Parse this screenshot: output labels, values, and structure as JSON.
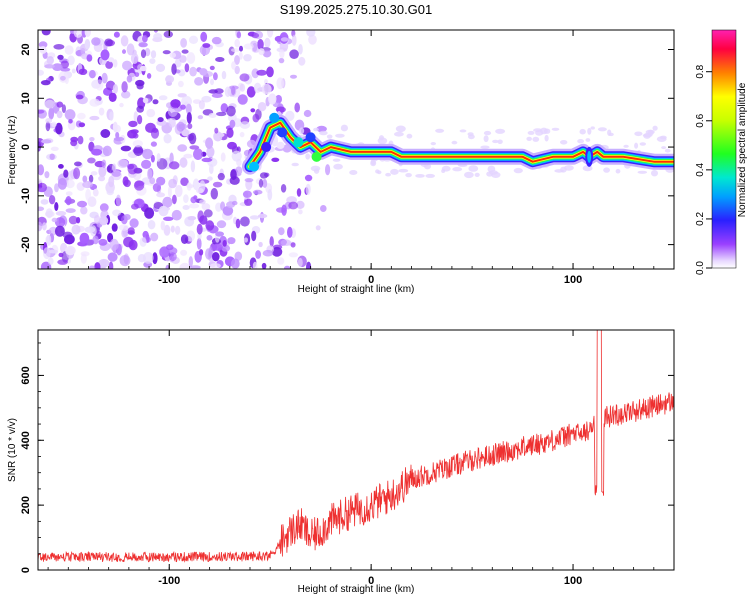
{
  "title": "S199.2025.275.10.30.G01",
  "chart_data": [
    {
      "type": "heatmap",
      "name": "spectrogram",
      "xlabel": "Height of straight line (km)",
      "ylabel": "Frequency (Hz)",
      "xlim": [
        -165,
        150
      ],
      "ylim": [
        -25,
        24
      ],
      "x_ticks": [
        -100,
        0,
        100
      ],
      "y_ticks": [
        20,
        10,
        0,
        -10,
        -20
      ],
      "noise_region_x": [
        -165,
        -40
      ],
      "signal_track": [
        [
          -60,
          -4
        ],
        [
          -55,
          -1
        ],
        [
          -50,
          4
        ],
        [
          -45,
          5
        ],
        [
          -40,
          2
        ],
        [
          -35,
          0
        ],
        [
          -30,
          1
        ],
        [
          -25,
          -1
        ],
        [
          -20,
          0
        ],
        [
          -10,
          -1
        ],
        [
          0,
          -1
        ],
        [
          5,
          -1
        ],
        [
          10,
          -1
        ],
        [
          15,
          -2
        ],
        [
          20,
          -2
        ],
        [
          40,
          -2
        ],
        [
          60,
          -2
        ],
        [
          75,
          -2
        ],
        [
          80,
          -3
        ],
        [
          90,
          -2
        ],
        [
          95,
          -2
        ],
        [
          100,
          -2
        ],
        [
          105,
          -1
        ],
        [
          108,
          -2
        ],
        [
          112,
          -1
        ],
        [
          115,
          -2
        ],
        [
          125,
          -2
        ],
        [
          140,
          -3
        ],
        [
          150,
          -3
        ]
      ],
      "colorbar": {
        "label": "Normalized spectral amplitude",
        "ticks": [
          "0.0",
          "0.2",
          "0.4",
          "0.6",
          "0.8"
        ],
        "range": [
          0,
          0.97
        ]
      }
    },
    {
      "type": "line",
      "name": "snr",
      "xlabel": "Height of straight line (km)",
      "ylabel": "SNR (10 * v/v)",
      "xlim": [
        -165,
        150
      ],
      "ylim": [
        0,
        740
      ],
      "x_ticks": [
        -100,
        0,
        100
      ],
      "y_ticks": [
        0,
        200,
        400,
        600
      ],
      "color": "#ee3030",
      "trend": [
        [
          -165,
          40
        ],
        [
          -100,
          40
        ],
        [
          -60,
          42
        ],
        [
          -50,
          45
        ],
        [
          -40,
          120
        ],
        [
          -35,
          140
        ],
        [
          -30,
          100
        ],
        [
          -25,
          120
        ],
        [
          -20,
          150
        ],
        [
          -10,
          180
        ],
        [
          0,
          200
        ],
        [
          10,
          230
        ],
        [
          20,
          280
        ],
        [
          30,
          300
        ],
        [
          50,
          340
        ],
        [
          70,
          370
        ],
        [
          90,
          400
        ],
        [
          100,
          420
        ],
        [
          105,
          420
        ],
        [
          110,
          440
        ],
        [
          115,
          470
        ],
        [
          130,
          490
        ],
        [
          150,
          520
        ]
      ],
      "spike": {
        "x": 113,
        "peak": 740,
        "dip": 225
      }
    }
  ]
}
